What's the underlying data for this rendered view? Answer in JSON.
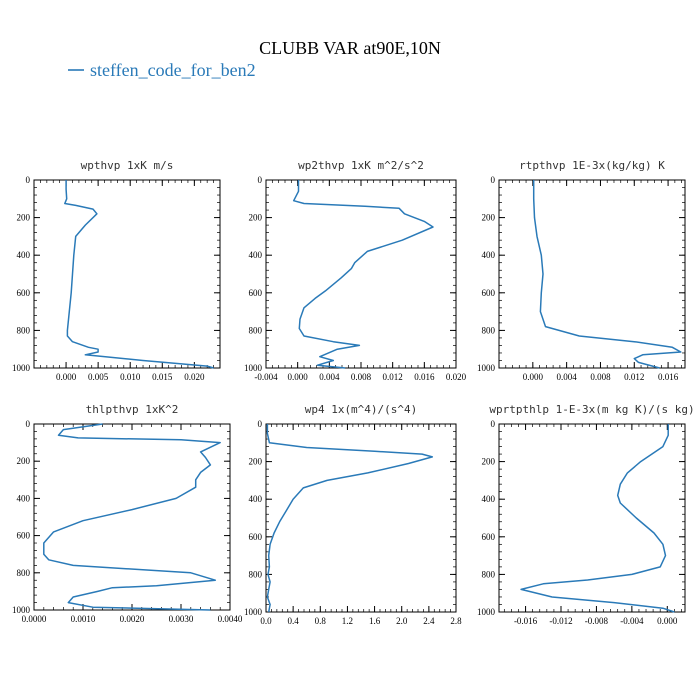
{
  "title": "CLUBB VAR at90E,10N",
  "legend": {
    "label": "steffen_code_for_ben2",
    "color": "#2a7ab8"
  },
  "series_color": "#2a7ab8",
  "chart_data": [
    {
      "type": "line",
      "title": "wpthvp  1xK m/s",
      "xlim": [
        -0.005,
        0.024
      ],
      "ylim": [
        1000,
        0
      ],
      "xticks": [
        0,
        0.005,
        0.01,
        0.015,
        0.02
      ],
      "xtick_labels": [
        "0.000",
        "0.005",
        "0.010",
        "0.015",
        "0.020"
      ],
      "yticks": [
        0,
        200,
        400,
        600,
        800,
        1000
      ],
      "ytick_labels": [
        "0",
        "200",
        "400",
        "600",
        "800",
        "1000"
      ],
      "series": [
        {
          "x": [
            0.0,
            0.0,
            0.0001,
            -0.0002,
            0.0015,
            0.0042,
            0.0048,
            0.003,
            0.0015,
            0.0012,
            0.001,
            0.0008,
            0.0005,
            0.0002,
            0.0002,
            0.001,
            0.0035,
            0.005,
            0.005,
            0.003,
            0.012,
            0.022,
            0.023
          ],
          "y": [
            0,
            50,
            100,
            125,
            135,
            155,
            180,
            240,
            300,
            400,
            500,
            600,
            700,
            800,
            830,
            860,
            890,
            900,
            915,
            930,
            960,
            990,
            1000
          ]
        }
      ]
    },
    {
      "type": "line",
      "title": "wp2thvp  1xK m^2/s^2",
      "xlim": [
        -0.004,
        0.02
      ],
      "ylim": [
        1000,
        0
      ],
      "xticks": [
        -0.004,
        0,
        0.004,
        0.008,
        0.012,
        0.016,
        0.02
      ],
      "xtick_labels": [
        "-0.004",
        "0.000",
        "0.004",
        "0.008",
        "0.012",
        "0.016",
        "0.020"
      ],
      "yticks": [
        0,
        200,
        400,
        600,
        800,
        1000
      ],
      "ytick_labels": [
        "0",
        "200",
        "400",
        "600",
        "800",
        "1000"
      ],
      "series": [
        {
          "x": [
            0.0001,
            0.0001,
            -0.0005,
            0.0008,
            0.0085,
            0.0128,
            0.0135,
            0.016,
            0.0171,
            0.0132,
            0.0088,
            0.0072,
            0.0068,
            0.0055,
            0.0035,
            0.0022,
            0.0008,
            0.0003,
            0.0002,
            0.0008,
            0.0045,
            0.0078,
            0.005,
            0.0028,
            0.0045,
            0.0025,
            0.006
          ],
          "y": [
            0,
            60,
            110,
            125,
            140,
            150,
            180,
            220,
            250,
            320,
            380,
            440,
            470,
            520,
            590,
            630,
            680,
            740,
            790,
            830,
            860,
            880,
            900,
            940,
            960,
            985,
            1000
          ]
        }
      ]
    },
    {
      "type": "line",
      "title": "rtpthvp  1E-3x(kg/kg) K",
      "xlim": [
        -0.004,
        0.018
      ],
      "ylim": [
        1000,
        0
      ],
      "xticks": [
        0,
        0.004,
        0.008,
        0.012,
        0.016
      ],
      "xtick_labels": [
        "0.000",
        "0.004",
        "0.008",
        "0.012",
        "0.016"
      ],
      "yticks": [
        0,
        200,
        400,
        600,
        800,
        1000
      ],
      "ytick_labels": [
        "0",
        "200",
        "400",
        "600",
        "800",
        "1000"
      ],
      "series": [
        {
          "x": [
            0.0001,
            0.0001,
            0.0002,
            0.0005,
            0.001,
            0.0012,
            0.001,
            0.0009,
            0.0015,
            0.0055,
            0.012,
            0.0165,
            0.0175,
            0.013,
            0.012,
            0.0125,
            0.015
          ],
          "y": [
            0,
            100,
            200,
            300,
            400,
            500,
            600,
            700,
            780,
            830,
            860,
            890,
            915,
            930,
            950,
            970,
            1000
          ]
        }
      ]
    },
    {
      "type": "line",
      "title": "thlpthvp  1xK^2",
      "xlim": [
        0,
        0.004
      ],
      "ylim": [
        1000,
        0
      ],
      "xticks": [
        0,
        0.001,
        0.002,
        0.003,
        0.004
      ],
      "xtick_labels": [
        "0.0000",
        "0.0010",
        "0.0020",
        "0.0030",
        "0.0040"
      ],
      "yticks": [
        0,
        200,
        400,
        600,
        800,
        1000
      ],
      "ytick_labels": [
        "0",
        "200",
        "400",
        "600",
        "800",
        "1000"
      ],
      "series": [
        {
          "x": [
            0.0014,
            0.0006,
            0.0005,
            0.0009,
            0.003,
            0.0038,
            0.0034,
            0.0035,
            0.0036,
            0.0034,
            0.0033,
            0.0033,
            0.0029,
            0.002,
            0.001,
            0.0004,
            0.0002,
            0.0002,
            0.0003,
            0.0008,
            0.0032,
            0.0037,
            0.0025,
            0.0016,
            0.0013,
            0.0008,
            0.0007,
            0.0012,
            0.0036
          ],
          "y": [
            0,
            30,
            60,
            75,
            85,
            100,
            150,
            180,
            220,
            260,
            300,
            340,
            400,
            460,
            520,
            580,
            640,
            700,
            730,
            760,
            800,
            840,
            870,
            880,
            900,
            930,
            960,
            985,
            1000
          ]
        }
      ]
    },
    {
      "type": "line",
      "title": "wp4  1x(m^4)/(s^4)",
      "xlim": [
        0,
        2.8
      ],
      "ylim": [
        1000,
        0
      ],
      "xticks": [
        0,
        0.4,
        0.8,
        1.2,
        1.6,
        2.0,
        2.4,
        2.8
      ],
      "xtick_labels": [
        "0.0",
        "0.4",
        "0.8",
        "1.2",
        "1.6",
        "2.0",
        "2.4",
        "2.8"
      ],
      "yticks": [
        0,
        200,
        400,
        600,
        800,
        1000
      ],
      "ytick_labels": [
        "0",
        "200",
        "400",
        "600",
        "800",
        "1000"
      ],
      "series": [
        {
          "x": [
            0.02,
            0.02,
            0.05,
            0.6,
            1.6,
            2.3,
            2.45,
            2.1,
            1.5,
            0.9,
            0.55,
            0.4,
            0.3,
            0.2,
            0.12,
            0.06,
            0.04,
            0.05,
            0.03,
            0.06,
            0.04,
            0.02,
            0.06,
            0.04
          ],
          "y": [
            0,
            50,
            100,
            125,
            145,
            160,
            175,
            210,
            260,
            300,
            340,
            400,
            460,
            520,
            580,
            640,
            700,
            760,
            800,
            840,
            880,
            920,
            960,
            1000
          ]
        }
      ]
    },
    {
      "type": "line",
      "title": "wprtpthlp  1-E-3x(m kg K)/(s kg)",
      "xlim": [
        -0.019,
        0.002
      ],
      "ylim": [
        1000,
        0
      ],
      "xticks": [
        -0.016,
        -0.012,
        -0.008,
        -0.004,
        0
      ],
      "xtick_labels": [
        "-0.016",
        "-0.012",
        "-0.008",
        "-0.004",
        "0.000"
      ],
      "yticks": [
        0,
        200,
        400,
        600,
        800,
        1000
      ],
      "ytick_labels": [
        "0",
        "200",
        "400",
        "600",
        "800",
        "1000"
      ],
      "series": [
        {
          "x": [
            0.0001,
            0.0001,
            -0.0005,
            -0.003,
            -0.0045,
            -0.0053,
            -0.0056,
            -0.0053,
            -0.0035,
            -0.0015,
            -0.0005,
            -0.0002,
            -0.0008,
            -0.004,
            -0.009,
            -0.014,
            -0.0165,
            -0.013,
            -0.006,
            -0.0005,
            0.0008
          ],
          "y": [
            0,
            60,
            120,
            200,
            260,
            320,
            380,
            420,
            500,
            580,
            640,
            700,
            760,
            800,
            830,
            850,
            880,
            920,
            950,
            980,
            1000
          ]
        }
      ]
    }
  ]
}
